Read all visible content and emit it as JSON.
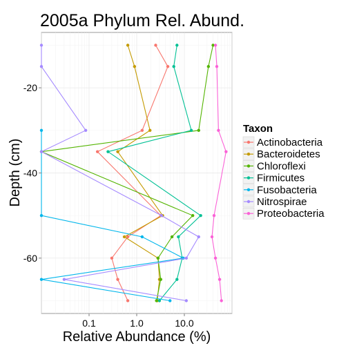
{
  "chart_data": {
    "type": "line",
    "title": "2005a Phylum Rel. Abund.",
    "xlabel": "Relative Abundance (%)",
    "ylabel": "Depth (cm)",
    "x_scale": "log10",
    "xlim": [
      0.01,
      100
    ],
    "ylim": [
      -73,
      -7
    ],
    "x_ticks": [
      0.1,
      1.0,
      10.0
    ],
    "x_tick_labels": [
      "0.1",
      "1.0",
      "10.0"
    ],
    "y_ticks": [
      -20,
      -40,
      -60
    ],
    "y_tick_labels": [
      "-20",
      "-40",
      "-60"
    ],
    "grid": true,
    "legend": {
      "title": "Taxon",
      "position": "right"
    },
    "series": [
      {
        "name": "Actinobacteria",
        "color": "#F8766D",
        "points": [
          [
            2.5,
            -10
          ],
          [
            4.5,
            -15
          ],
          [
            1.3,
            -30
          ],
          [
            0.15,
            -35
          ],
          [
            3.2,
            -50
          ],
          [
            0.65,
            -55
          ],
          [
            0.3,
            -60
          ],
          [
            0.4,
            -65
          ],
          [
            0.65,
            -70
          ]
        ]
      },
      {
        "name": "Bacteroidetes",
        "color": "#C49A00",
        "points": [
          [
            0.65,
            -10
          ],
          [
            0.9,
            -15
          ],
          [
            1.9,
            -30
          ],
          [
            0.4,
            -35
          ],
          [
            3.5,
            -50
          ],
          [
            0.55,
            -55
          ],
          [
            2.8,
            -60
          ],
          [
            3.0,
            -65
          ],
          [
            2.7,
            -70
          ]
        ]
      },
      {
        "name": "Chloroflexi",
        "color": "#53B400",
        "points": [
          [
            40,
            -10
          ],
          [
            32,
            -15
          ],
          [
            20,
            -30
          ],
          [
            0.01,
            -35
          ],
          [
            15,
            -50
          ],
          [
            5.5,
            -55
          ],
          [
            2.8,
            -60
          ],
          [
            3.2,
            -65
          ],
          [
            2.6,
            -70
          ]
        ]
      },
      {
        "name": "Firmicutes",
        "color": "#00C094",
        "points": [
          [
            7,
            -10
          ],
          [
            6,
            -15
          ],
          [
            14,
            -30
          ],
          [
            0.25,
            -35
          ],
          [
            22,
            -50
          ],
          [
            7.5,
            -55
          ],
          [
            9,
            -60
          ],
          [
            7,
            -65
          ],
          [
            3.0,
            -70
          ]
        ]
      },
      {
        "name": "Fusobacteria",
        "color": "#00B6EB",
        "points": [
          [
            0.01,
            -30
          ],
          [
            0.01,
            -50
          ],
          [
            1.3,
            -55
          ],
          [
            9.5,
            -60
          ],
          [
            0.01,
            -65
          ],
          [
            5.0,
            -70
          ]
        ]
      },
      {
        "name": "Nitrospirae",
        "color": "#A58AFF",
        "points": [
          [
            0.01,
            -10
          ],
          [
            0.01,
            -15
          ],
          [
            0.085,
            -30
          ],
          [
            0.01,
            -35
          ],
          [
            3.3,
            -50
          ],
          [
            20,
            -55
          ],
          [
            11,
            -60
          ],
          [
            0.03,
            -65
          ],
          [
            11,
            -70
          ]
        ]
      },
      {
        "name": "Proteobacteria",
        "color": "#FB61D7",
        "points": [
          [
            45,
            -10
          ],
          [
            48,
            -15
          ],
          [
            52,
            -30
          ],
          [
            75,
            -35
          ],
          [
            42,
            -50
          ],
          [
            38,
            -55
          ],
          [
            45,
            -60
          ],
          [
            55,
            -65
          ],
          [
            60,
            -70
          ]
        ]
      }
    ]
  }
}
